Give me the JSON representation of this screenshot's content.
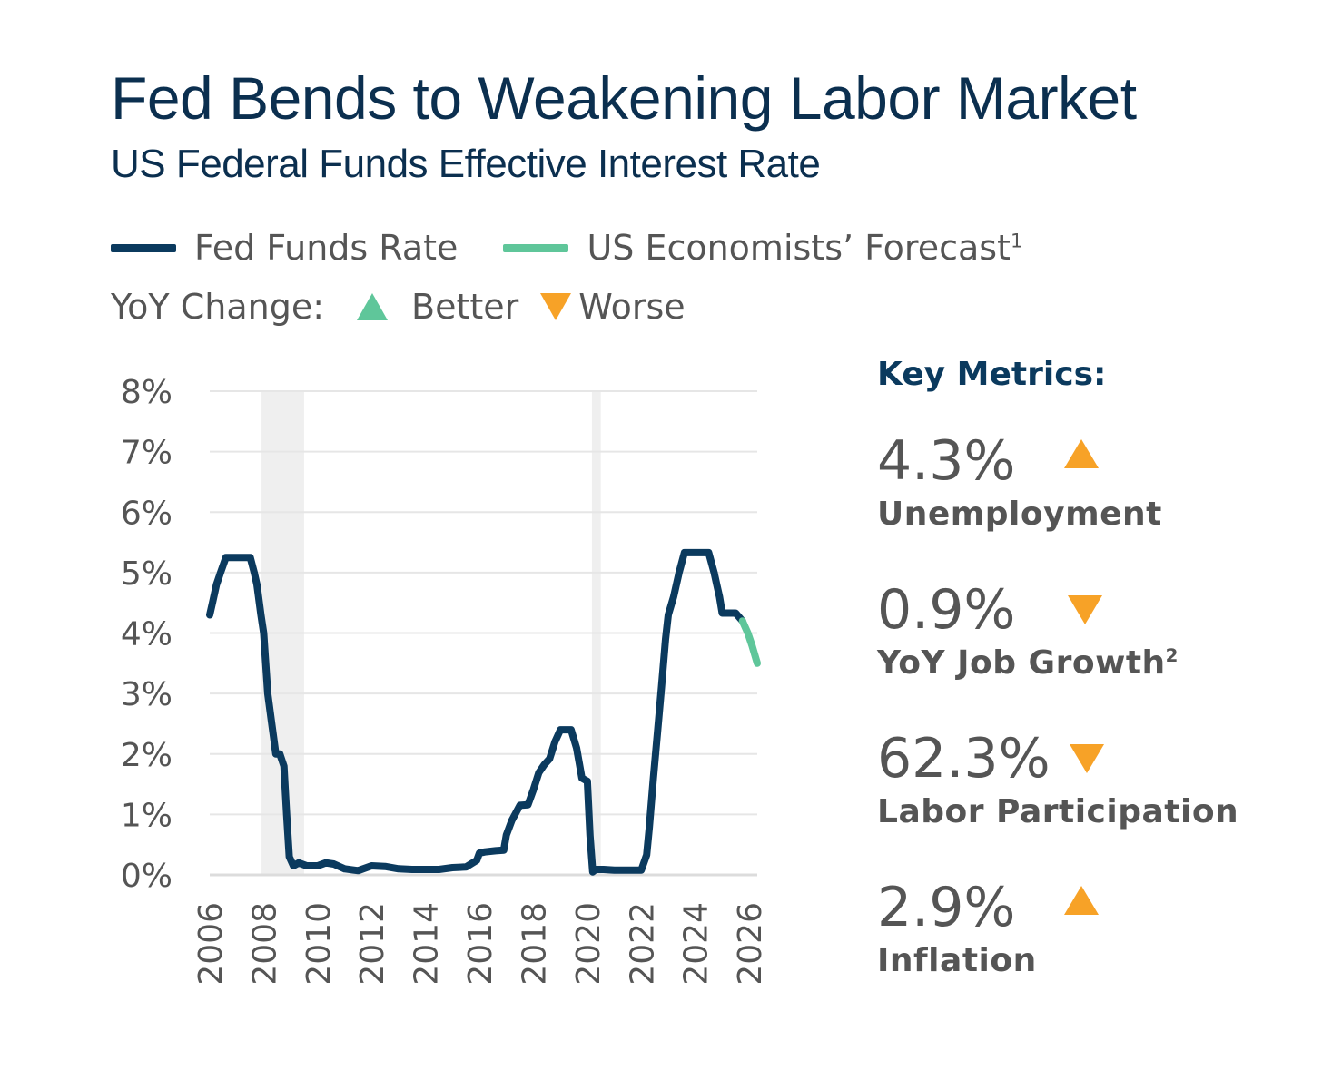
{
  "title": "Fed Bends to Weakening Labor Market",
  "subtitle": "US Federal Funds Effective Interest Rate",
  "legend": {
    "series1": "Fed Funds Rate",
    "series2": "US Economists’ Forecast",
    "series2_sup": "1",
    "yoy_label": "YoY Change:",
    "better": "Better",
    "worse": "Worse"
  },
  "colors": {
    "fed": "#0b3a5e",
    "forecast": "#5fc69a",
    "better": "#5fc69a",
    "worse": "#f7a227",
    "recession": "#efefef",
    "grid": "#e6e6e6"
  },
  "chart_data": {
    "type": "line",
    "title": "US Federal Funds Effective Interest Rate",
    "xlabel": "",
    "ylabel": "",
    "xlim": [
      2006,
      2026.3
    ],
    "ylim": [
      0,
      8
    ],
    "yticks": [
      "0%",
      "1%",
      "2%",
      "3%",
      "4%",
      "5%",
      "6%",
      "7%",
      "8%"
    ],
    "xticks": [
      "2006",
      "2008",
      "2010",
      "2012",
      "2014",
      "2016",
      "2018",
      "2020",
      "2022",
      "2024",
      "2026"
    ],
    "grid": true,
    "recessions": [
      [
        2007.92,
        2009.5
      ],
      [
        2020.17,
        2020.5
      ]
    ],
    "series": [
      {
        "name": "Fed Funds Rate",
        "x": [
          2006.0,
          2006.1,
          2006.25,
          2006.4,
          2006.6,
          2006.9,
          2007.2,
          2007.5,
          2007.65,
          2007.75,
          2007.9,
          2008.0,
          2008.15,
          2008.3,
          2008.45,
          2008.6,
          2008.75,
          2008.85,
          2008.95,
          2009.1,
          2009.3,
          2009.6,
          2010.0,
          2010.3,
          2010.6,
          2011.0,
          2011.5,
          2012.0,
          2012.5,
          2013.0,
          2013.5,
          2014.0,
          2014.5,
          2015.0,
          2015.5,
          2015.9,
          2016.0,
          2016.2,
          2016.6,
          2016.9,
          2017.0,
          2017.2,
          2017.5,
          2017.8,
          2018.0,
          2018.2,
          2018.4,
          2018.6,
          2018.8,
          2019.0,
          2019.2,
          2019.4,
          2019.6,
          2019.8,
          2020.0,
          2020.1,
          2020.2,
          2020.3,
          2020.6,
          2021.0,
          2021.5,
          2022.0,
          2022.2,
          2022.3,
          2022.45,
          2022.6,
          2022.75,
          2022.9,
          2023.0,
          2023.2,
          2023.4,
          2023.6,
          2024.0,
          2024.5,
          2024.7,
          2024.8,
          2024.9,
          2025.0,
          2025.5,
          2025.75
        ],
        "values": [
          4.3,
          4.5,
          4.8,
          5.0,
          5.25,
          5.25,
          5.25,
          5.25,
          5.0,
          4.8,
          4.3,
          4.0,
          3.0,
          2.5,
          2.0,
          2.0,
          1.8,
          1.0,
          0.3,
          0.15,
          0.2,
          0.15,
          0.15,
          0.2,
          0.18,
          0.1,
          0.07,
          0.15,
          0.14,
          0.1,
          0.09,
          0.09,
          0.09,
          0.12,
          0.13,
          0.24,
          0.36,
          0.38,
          0.4,
          0.41,
          0.66,
          0.9,
          1.15,
          1.16,
          1.41,
          1.69,
          1.82,
          1.92,
          2.2,
          2.4,
          2.4,
          2.4,
          2.1,
          1.6,
          1.55,
          0.65,
          0.05,
          0.09,
          0.09,
          0.08,
          0.08,
          0.08,
          0.33,
          0.8,
          1.6,
          2.35,
          3.1,
          3.9,
          4.3,
          4.6,
          5.0,
          5.33,
          5.33,
          5.33,
          5.0,
          4.8,
          4.6,
          4.33,
          4.33,
          4.2
        ]
      },
      {
        "name": "US Economists’ Forecast",
        "x": [
          2025.75,
          2025.95,
          2026.1,
          2026.3
        ],
        "values": [
          4.2,
          4.0,
          3.8,
          3.5
        ]
      }
    ]
  },
  "metrics": {
    "heading": "Key Metrics:",
    "items": [
      {
        "value": "4.3%",
        "label": "Unemployment",
        "sup": "",
        "change": "up"
      },
      {
        "value": "0.9%",
        "label": "YoY Job Growth",
        "sup": "2",
        "change": "down"
      },
      {
        "value": "62.3%",
        "label": "Labor Participation",
        "sup": "",
        "change": "down"
      },
      {
        "value": "2.9%",
        "label": "Inflation",
        "sup": "",
        "change": "up"
      }
    ]
  }
}
